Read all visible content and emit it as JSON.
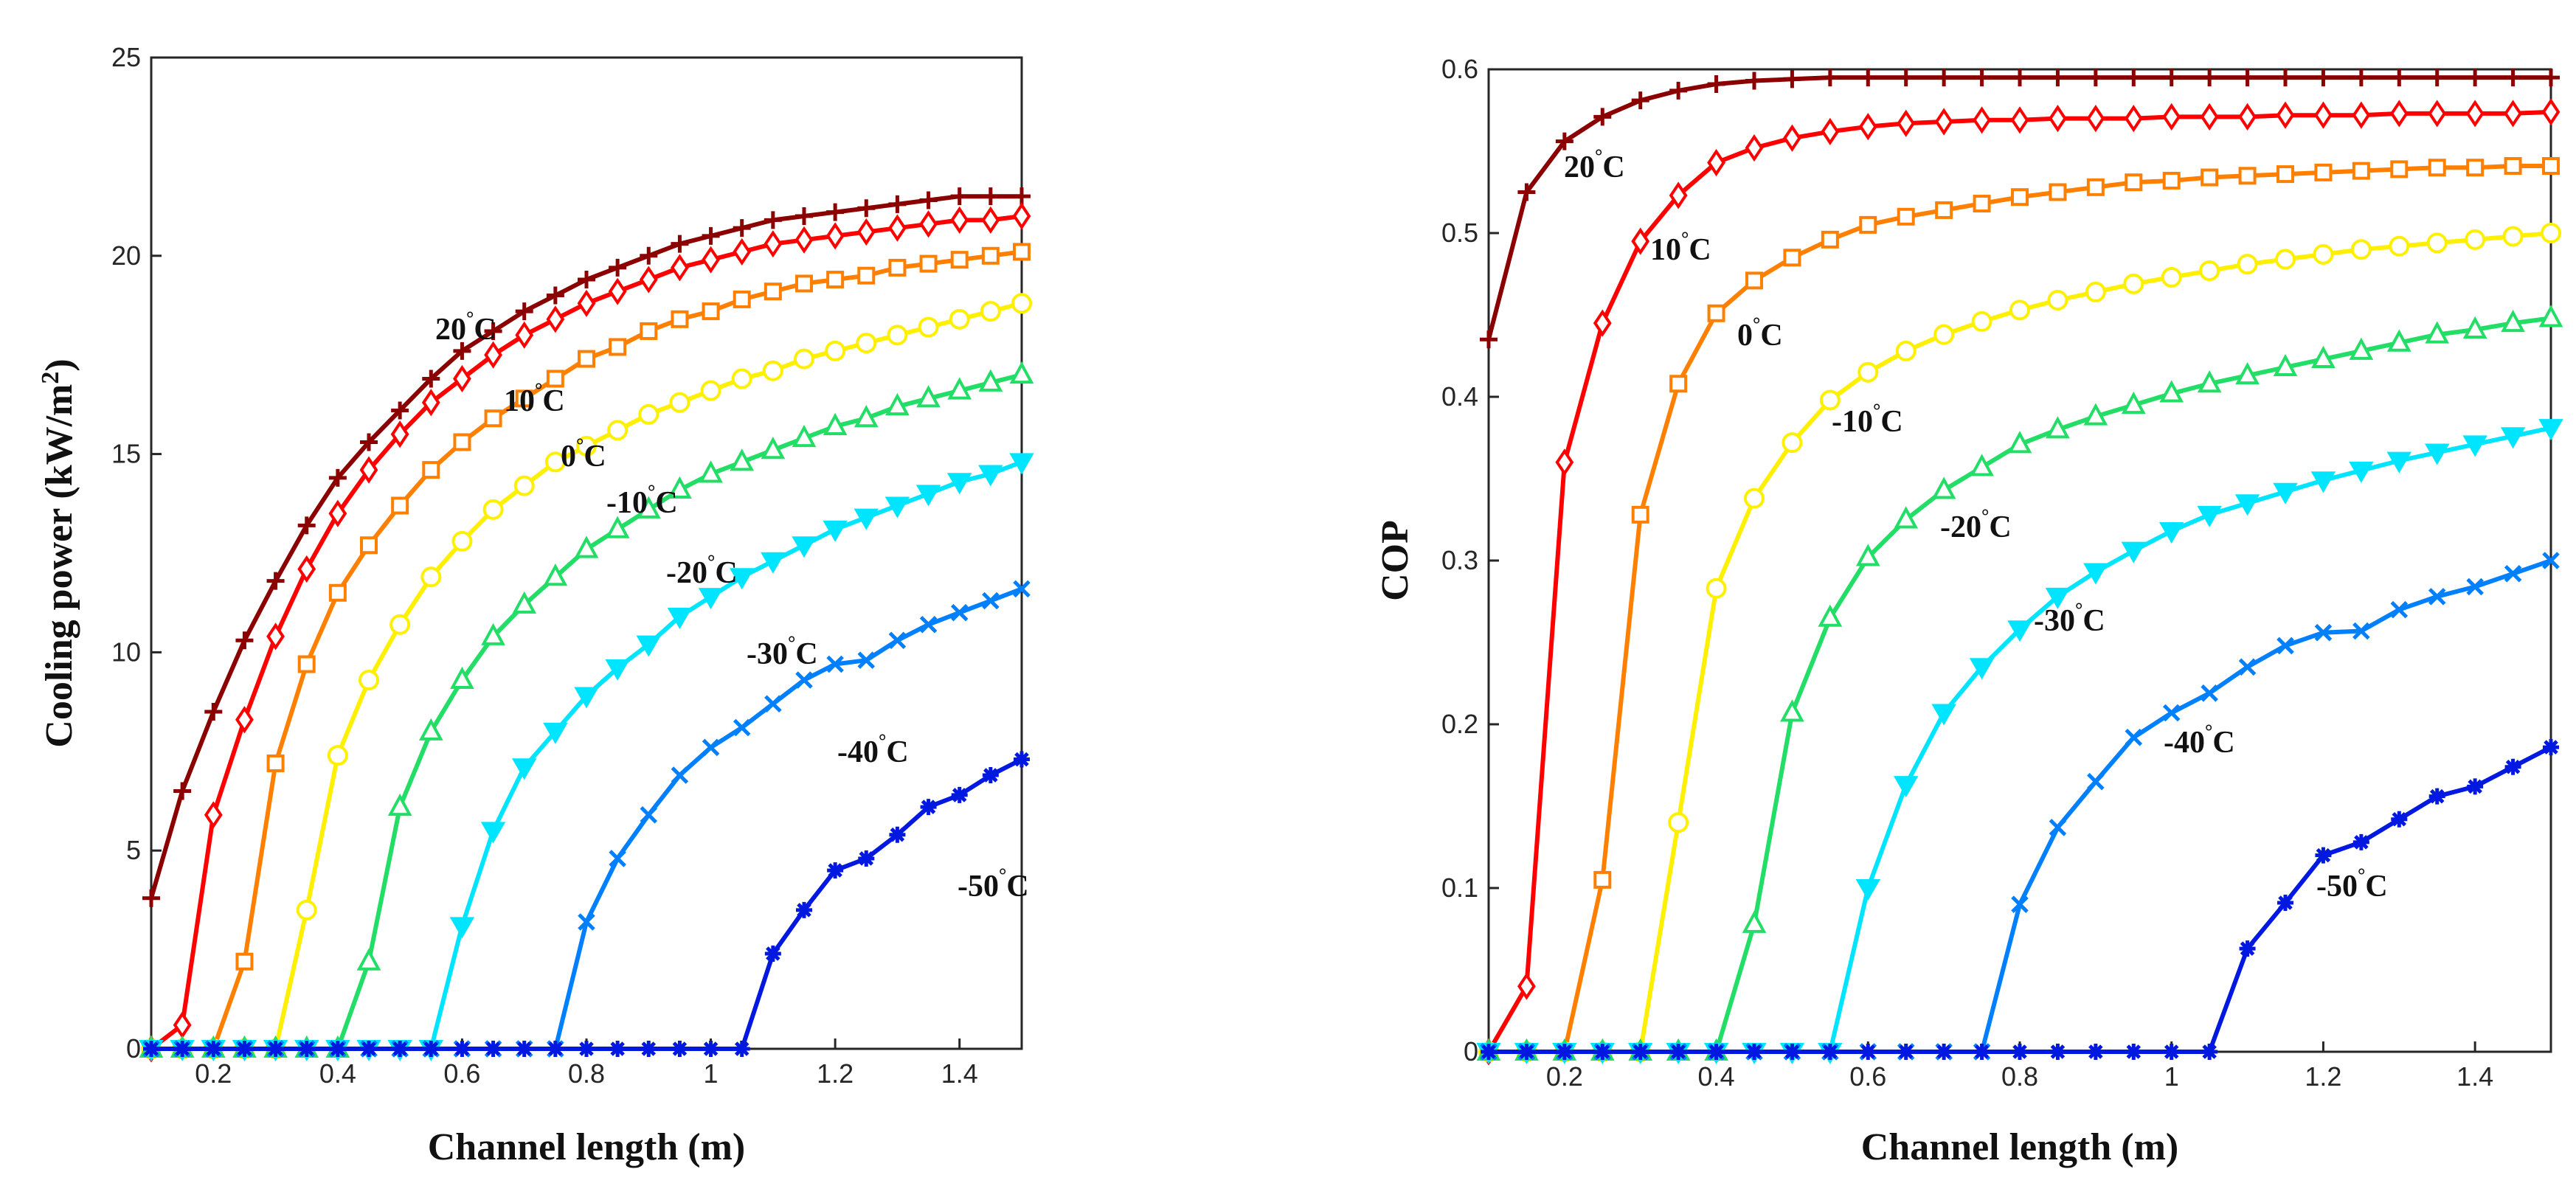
{
  "chart_data": [
    {
      "type": "line",
      "title": "",
      "xlabel": "Channel length (m)",
      "ylabel_main": "Cooling power (kW/m",
      "ylabel_sup": "2",
      "ylabel_tail": ")",
      "xlim": [
        0.1,
        1.5
      ],
      "ylim": [
        0,
        25
      ],
      "grid": false,
      "x_ticks": [
        "0.2",
        "0.4",
        "0.6",
        "0.8",
        "1",
        "1.2",
        "1.4"
      ],
      "y_ticks": [
        "0",
        "5",
        "10",
        "15",
        "20",
        "25"
      ],
      "x": [
        0.1,
        0.15,
        0.2,
        0.25,
        0.3,
        0.35,
        0.4,
        0.45,
        0.5,
        0.55,
        0.6,
        0.65,
        0.7,
        0.75,
        0.8,
        0.85,
        0.9,
        0.95,
        1.0,
        1.05,
        1.1,
        1.15,
        1.2,
        1.25,
        1.3,
        1.35,
        1.4,
        1.45,
        1.5
      ],
      "series": [
        {
          "name": "20°C",
          "label_main": "20",
          "label_tail": "C",
          "color": "#8B0000",
          "marker": "plus",
          "values": [
            3.8,
            6.5,
            8.5,
            10.3,
            11.8,
            13.2,
            14.4,
            15.3,
            16.1,
            16.9,
            17.6,
            18.1,
            18.6,
            19.0,
            19.4,
            19.7,
            20.0,
            20.3,
            20.5,
            20.7,
            20.9,
            21.0,
            21.1,
            21.2,
            21.3,
            21.4,
            21.5,
            21.5,
            21.5
          ]
        },
        {
          "name": "10°C",
          "label_main": "10",
          "label_tail": "C",
          "color": "#FF0000",
          "marker": "diamond",
          "values": [
            0,
            0.6,
            5.9,
            8.3,
            10.4,
            12.1,
            13.5,
            14.6,
            15.5,
            16.3,
            16.9,
            17.5,
            18.0,
            18.4,
            18.8,
            19.1,
            19.4,
            19.7,
            19.9,
            20.1,
            20.3,
            20.4,
            20.5,
            20.6,
            20.7,
            20.8,
            20.9,
            20.9,
            21.0
          ]
        },
        {
          "name": "0°C",
          "label_main": "0",
          "label_tail": "C",
          "color": "#FF8000",
          "marker": "square",
          "values": [
            0,
            0,
            0,
            2.2,
            7.2,
            9.7,
            11.5,
            12.7,
            13.7,
            14.6,
            15.3,
            15.9,
            16.4,
            16.9,
            17.4,
            17.7,
            18.1,
            18.4,
            18.6,
            18.9,
            19.1,
            19.3,
            19.4,
            19.5,
            19.7,
            19.8,
            19.9,
            20.0,
            20.1
          ]
        },
        {
          "name": "-10°C",
          "label_main": "-10",
          "label_tail": "C",
          "color": "#FFF000",
          "marker": "circle",
          "values": [
            0,
            0,
            0,
            0,
            0,
            3.5,
            7.4,
            9.3,
            10.7,
            11.9,
            12.8,
            13.6,
            14.2,
            14.8,
            15.2,
            15.6,
            16.0,
            16.3,
            16.6,
            16.9,
            17.1,
            17.4,
            17.6,
            17.8,
            18.0,
            18.2,
            18.4,
            18.6,
            18.8
          ]
        },
        {
          "name": "-20°C",
          "label_main": "-20",
          "label_tail": "C",
          "color": "#22DD66",
          "marker": "triangle-up",
          "values": [
            0,
            0,
            0,
            0,
            0,
            0,
            0,
            2.2,
            6.1,
            8.0,
            9.3,
            10.4,
            11.2,
            11.9,
            12.6,
            13.1,
            13.6,
            14.1,
            14.5,
            14.8,
            15.1,
            15.4,
            15.7,
            15.9,
            16.2,
            16.4,
            16.6,
            16.8,
            17.0
          ]
        },
        {
          "name": "-30°C",
          "label_main": "-30",
          "label_tail": "C",
          "color": "#00E5FF",
          "marker": "triangle-down",
          "values": [
            0,
            0,
            0,
            0,
            0,
            0,
            0,
            0,
            0,
            0,
            3.1,
            5.5,
            7.1,
            8.0,
            8.9,
            9.6,
            10.2,
            10.9,
            11.4,
            11.9,
            12.3,
            12.7,
            13.1,
            13.4,
            13.7,
            14.0,
            14.3,
            14.5,
            14.8
          ]
        },
        {
          "name": "-40°C",
          "label_main": "-40",
          "label_tail": "C",
          "color": "#0080FF",
          "marker": "x",
          "values": [
            0,
            0,
            0,
            0,
            0,
            0,
            0,
            0,
            0,
            0,
            0,
            0,
            0,
            0,
            3.2,
            4.8,
            5.9,
            6.9,
            7.6,
            8.1,
            8.7,
            9.3,
            9.7,
            9.8,
            10.3,
            10.7,
            11.0,
            11.3,
            11.6
          ]
        },
        {
          "name": "-50°C",
          "label_main": "-50",
          "label_tail": "C",
          "color": "#0018E0",
          "marker": "star",
          "values": [
            0,
            0,
            0,
            0,
            0,
            0,
            0,
            0,
            0,
            0,
            0,
            0,
            0,
            0,
            0,
            0,
            0,
            0,
            0,
            0,
            2.4,
            3.5,
            4.5,
            4.8,
            5.4,
            6.1,
            6.4,
            6.9,
            7.3
          ]
        }
      ]
    },
    {
      "type": "line",
      "title": "",
      "xlabel": "Channel length (m)",
      "ylabel_main": "COP",
      "ylabel_sup": "",
      "ylabel_tail": "",
      "xlim": [
        0.1,
        1.5
      ],
      "ylim": [
        0,
        0.6
      ],
      "grid": false,
      "x_ticks": [
        "0.2",
        "0.4",
        "0.6",
        "0.8",
        "1",
        "1.2",
        "1.4"
      ],
      "y_ticks": [
        "0",
        "0.1",
        "0.2",
        "0.3",
        "0.4",
        "0.5",
        "0.6"
      ],
      "x": [
        0.1,
        0.15,
        0.2,
        0.25,
        0.3,
        0.35,
        0.4,
        0.45,
        0.5,
        0.55,
        0.6,
        0.65,
        0.7,
        0.75,
        0.8,
        0.85,
        0.9,
        0.95,
        1.0,
        1.05,
        1.1,
        1.15,
        1.2,
        1.25,
        1.3,
        1.35,
        1.4,
        1.45,
        1.5
      ],
      "series": [
        {
          "name": "20°C",
          "label_main": "20",
          "label_tail": "C",
          "color": "#8B0000",
          "marker": "plus",
          "values": [
            0.435,
            0.525,
            0.556,
            0.571,
            0.581,
            0.587,
            0.591,
            0.593,
            0.594,
            0.595,
            0.595,
            0.595,
            0.595,
            0.595,
            0.595,
            0.595,
            0.595,
            0.595,
            0.595,
            0.595,
            0.595,
            0.595,
            0.595,
            0.595,
            0.595,
            0.595,
            0.595,
            0.595,
            0.595
          ]
        },
        {
          "name": "10°C",
          "label_main": "10",
          "label_tail": "C",
          "color": "#FF0000",
          "marker": "diamond",
          "values": [
            0,
            0.04,
            0.36,
            0.445,
            0.495,
            0.523,
            0.543,
            0.552,
            0.558,
            0.562,
            0.565,
            0.567,
            0.568,
            0.569,
            0.569,
            0.57,
            0.57,
            0.57,
            0.571,
            0.571,
            0.571,
            0.572,
            0.572,
            0.572,
            0.573,
            0.573,
            0.573,
            0.573,
            0.574
          ]
        },
        {
          "name": "0°C",
          "label_main": "0",
          "label_tail": "C",
          "color": "#FF8000",
          "marker": "square",
          "values": [
            0,
            0,
            0,
            0.105,
            0.328,
            0.408,
            0.451,
            0.471,
            0.485,
            0.496,
            0.505,
            0.51,
            0.514,
            0.518,
            0.522,
            0.525,
            0.528,
            0.531,
            0.532,
            0.534,
            0.535,
            0.536,
            0.537,
            0.538,
            0.539,
            0.54,
            0.54,
            0.541,
            0.541
          ]
        },
        {
          "name": "-10°C",
          "label_main": "-10",
          "label_tail": "C",
          "color": "#FFF000",
          "marker": "circle",
          "values": [
            0,
            0,
            0,
            0,
            0,
            0.14,
            0.283,
            0.338,
            0.372,
            0.398,
            0.415,
            0.428,
            0.438,
            0.446,
            0.453,
            0.459,
            0.464,
            0.469,
            0.473,
            0.477,
            0.481,
            0.484,
            0.487,
            0.49,
            0.492,
            0.494,
            0.496,
            0.498,
            0.5
          ]
        },
        {
          "name": "-20°C",
          "label_main": "-20",
          "label_tail": "C",
          "color": "#22DD66",
          "marker": "triangle-up",
          "values": [
            0,
            0,
            0,
            0,
            0,
            0,
            0,
            0.078,
            0.207,
            0.265,
            0.302,
            0.325,
            0.343,
            0.357,
            0.371,
            0.38,
            0.388,
            0.395,
            0.402,
            0.408,
            0.413,
            0.418,
            0.423,
            0.428,
            0.433,
            0.438,
            0.441,
            0.445,
            0.448
          ]
        },
        {
          "name": "-30°C",
          "label_main": "-30",
          "label_tail": "C",
          "color": "#00E5FF",
          "marker": "triangle-down",
          "values": [
            0,
            0,
            0,
            0,
            0,
            0,
            0,
            0,
            0,
            0,
            0.1,
            0.163,
            0.207,
            0.235,
            0.258,
            0.278,
            0.293,
            0.306,
            0.318,
            0.328,
            0.335,
            0.342,
            0.349,
            0.355,
            0.361,
            0.366,
            0.371,
            0.376,
            0.381
          ]
        },
        {
          "name": "-40°C",
          "label_main": "-40",
          "label_tail": "C",
          "color": "#0080FF",
          "marker": "x",
          "values": [
            0,
            0,
            0,
            0,
            0,
            0,
            0,
            0,
            0,
            0,
            0,
            0,
            0,
            0,
            0.09,
            0.137,
            0.165,
            0.192,
            0.207,
            0.219,
            0.235,
            0.248,
            0.256,
            0.257,
            0.27,
            0.278,
            0.284,
            0.292,
            0.3
          ]
        },
        {
          "name": "-50°C",
          "label_main": "-50",
          "label_tail": "C",
          "color": "#0018E0",
          "marker": "star",
          "values": [
            0,
            0,
            0,
            0,
            0,
            0,
            0,
            0,
            0,
            0,
            0,
            0,
            0,
            0,
            0,
            0,
            0,
            0,
            0,
            0,
            0.063,
            0.091,
            0.12,
            0.128,
            0.142,
            0.156,
            0.162,
            0.174,
            0.186
          ]
        }
      ]
    }
  ]
}
